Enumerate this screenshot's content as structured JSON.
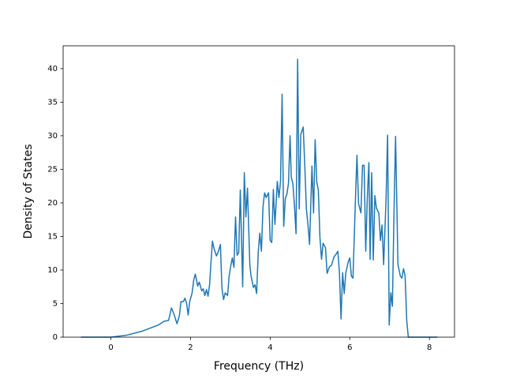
{
  "chart_data": {
    "type": "line",
    "xlabel": "Frequency (THz)",
    "ylabel": "Density of States",
    "color": "#1f77b4",
    "x": [
      -0.75,
      0,
      0.4,
      0.79,
      1.19,
      1.33,
      1.45,
      1.52,
      1.58,
      1.66,
      1.72,
      1.76,
      1.82,
      1.86,
      1.9,
      1.94,
      1.98,
      2.04,
      2.08,
      2.12,
      2.18,
      2.22,
      2.28,
      2.32,
      2.36,
      2.4,
      2.44,
      2.48,
      2.51,
      2.55,
      2.59,
      2.65,
      2.69,
      2.75,
      2.79,
      2.83,
      2.87,
      2.93,
      2.97,
      3.01,
      3.05,
      3.09,
      3.13,
      3.17,
      3.21,
      3.25,
      3.31,
      3.35,
      3.39,
      3.43,
      3.49,
      3.52,
      3.58,
      3.62,
      3.66,
      3.7,
      3.74,
      3.78,
      3.82,
      3.86,
      3.9,
      3.96,
      4.0,
      4.04,
      4.08,
      4.12,
      4.18,
      4.22,
      4.26,
      4.3,
      4.34,
      4.38,
      4.42,
      4.46,
      4.5,
      4.53,
      4.57,
      4.61,
      4.65,
      4.69,
      4.73,
      4.77,
      4.83,
      4.87,
      4.91,
      4.95,
      4.99,
      5.05,
      5.09,
      5.13,
      5.17,
      5.21,
      5.25,
      5.29,
      5.33,
      5.39,
      5.43,
      5.49,
      5.54,
      5.6,
      5.66,
      5.7,
      5.74,
      5.78,
      5.82,
      5.86,
      5.9,
      5.96,
      6.0,
      6.04,
      6.08,
      6.14,
      6.18,
      6.22,
      6.28,
      6.32,
      6.36,
      6.4,
      6.44,
      6.48,
      6.51,
      6.55,
      6.59,
      6.63,
      6.67,
      6.73,
      6.77,
      6.81,
      6.85,
      6.91,
      6.95,
      6.99,
      7.03,
      7.07,
      7.11,
      7.15,
      7.21,
      7.27,
      7.31,
      7.35,
      7.39,
      7.43,
      7.47,
      7.72,
      8.2
    ],
    "y": [
      0,
      0,
      0.3,
      0.9,
      1.8,
      2.35,
      2.5,
      4.35,
      3.5,
      2.0,
      3.2,
      5.3,
      5.3,
      5.8,
      5.1,
      3.3,
      5.3,
      6.6,
      8.5,
      9.4,
      7.6,
      8.2,
      6.9,
      7.2,
      6.2,
      7.1,
      6.1,
      7.9,
      10.8,
      14.3,
      13.2,
      12.1,
      12.6,
      13.8,
      7.2,
      5.6,
      6.6,
      6.2,
      9.1,
      10.6,
      11.8,
      10.4,
      17.9,
      12.2,
      12.6,
      21.9,
      7.5,
      24.5,
      17.9,
      22.2,
      10.7,
      9.1,
      7.4,
      7.8,
      6.5,
      12.6,
      15.5,
      12.8,
      19.4,
      21.5,
      20.8,
      21.5,
      14.4,
      14.1,
      22.0,
      16.8,
      23.2,
      20.8,
      23.2,
      36.2,
      16.5,
      20.6,
      21.3,
      22.9,
      30.0,
      23.8,
      22.9,
      19.6,
      15.4,
      41.4,
      19.1,
      30.2,
      31.3,
      25.5,
      19.1,
      16.7,
      13.8,
      25.5,
      18.5,
      29.4,
      23.2,
      21.9,
      14.9,
      11.6,
      14.0,
      13.3,
      9.5,
      10.5,
      10.7,
      11.9,
      12.4,
      12.8,
      9.6,
      2.7,
      9.6,
      6.5,
      9.6,
      11.2,
      11.8,
      9.1,
      8.8,
      20.2,
      27.1,
      19.9,
      18.5,
      25.6,
      25.6,
      12.8,
      20.8,
      26.0,
      11.6,
      24.5,
      11.5,
      21.1,
      19.2,
      18.5,
      14.4,
      16.7,
      10.8,
      20.4,
      30.1,
      1.8,
      6.6,
      4.6,
      18.5,
      29.9,
      10.8,
      9.1,
      8.8,
      10.2,
      9.1,
      2.5,
      0,
      0,
      0
    ],
    "xlim": [
      -1.2,
      8.63
    ],
    "ylim": [
      0,
      43.4
    ],
    "xticks": [
      0,
      2,
      4,
      6,
      8
    ],
    "yticks": [
      0,
      5,
      10,
      15,
      20,
      25,
      30,
      35,
      40
    ]
  }
}
